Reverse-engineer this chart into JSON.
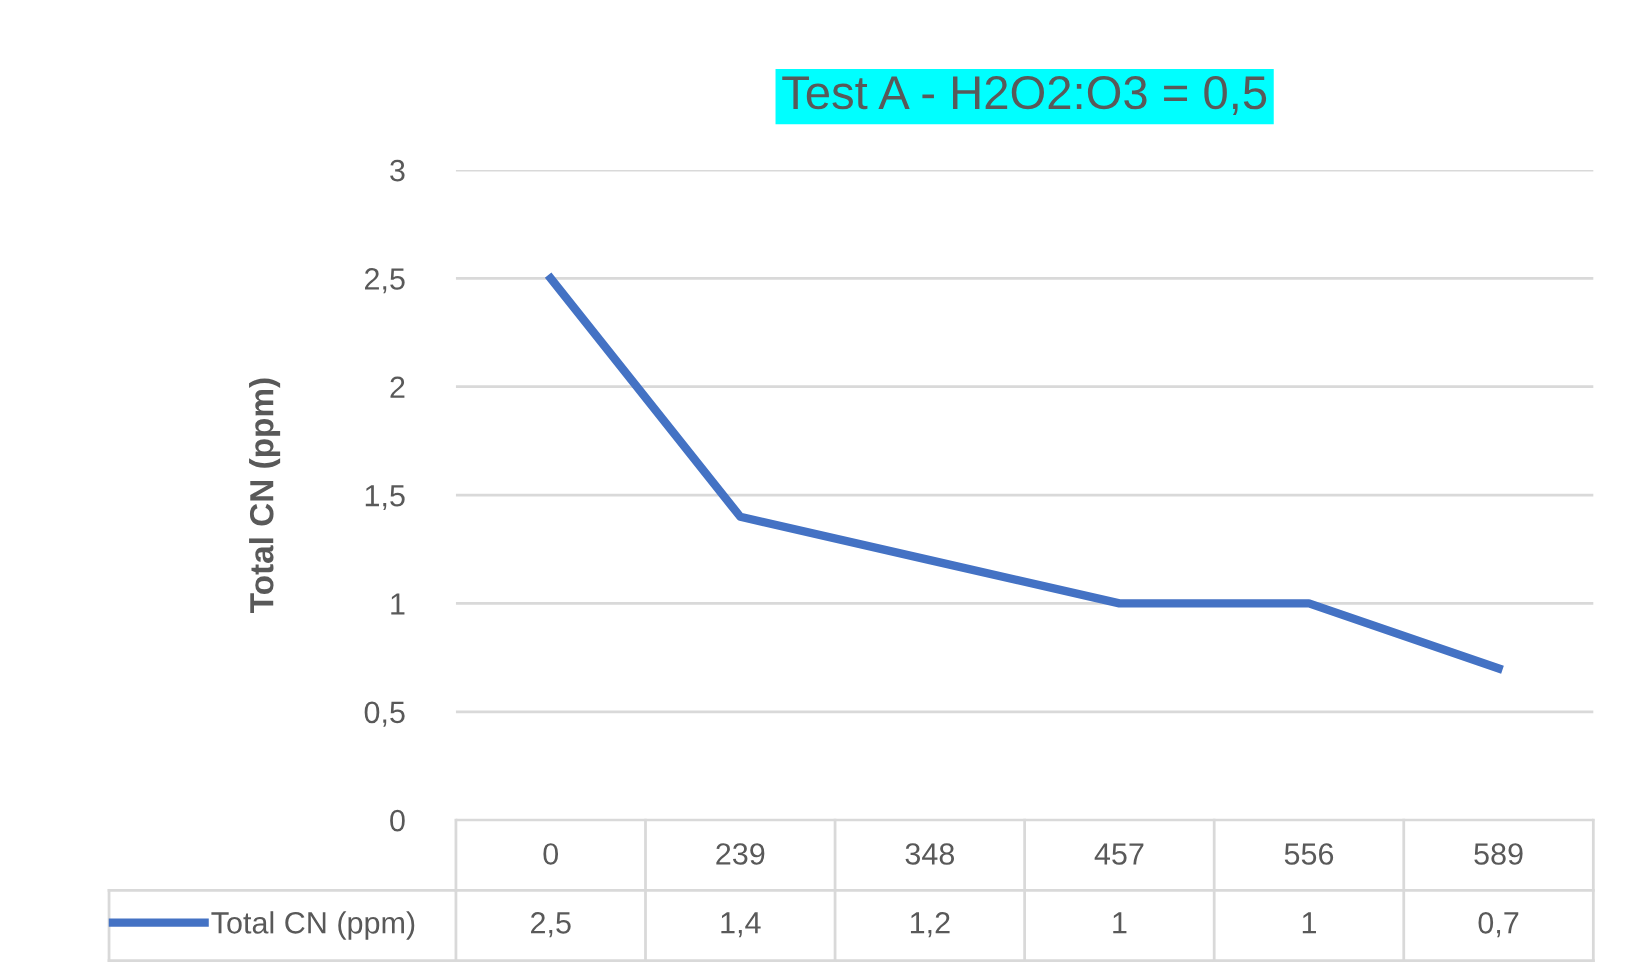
{
  "chart_data": {
    "type": "line",
    "title": "Test A - H2O2:O3 = 0,5",
    "ylabel": "Total CN (ppm)",
    "categories": [
      "0",
      "239",
      "348",
      "457",
      "556",
      "589"
    ],
    "series": [
      {
        "name": "Total CN (ppm)",
        "color": "#4472c4",
        "values": [
          2.5,
          1.4,
          1.2,
          1,
          1,
          0.7
        ],
        "value_labels": [
          "2,5",
          "1,4",
          "1,2",
          "1",
          "1",
          "0,7"
        ]
      }
    ],
    "ylim": [
      0,
      3
    ],
    "yticks": [
      0,
      {
        "value": 0.5,
        "label": "0,5"
      },
      1,
      {
        "value": 1.5,
        "label": "1,5"
      },
      2,
      {
        "value": 2.5,
        "label": "2,5"
      },
      3
    ],
    "grid": "y",
    "legend": "bottom left",
    "marker": "none",
    "line_style": "solid"
  }
}
